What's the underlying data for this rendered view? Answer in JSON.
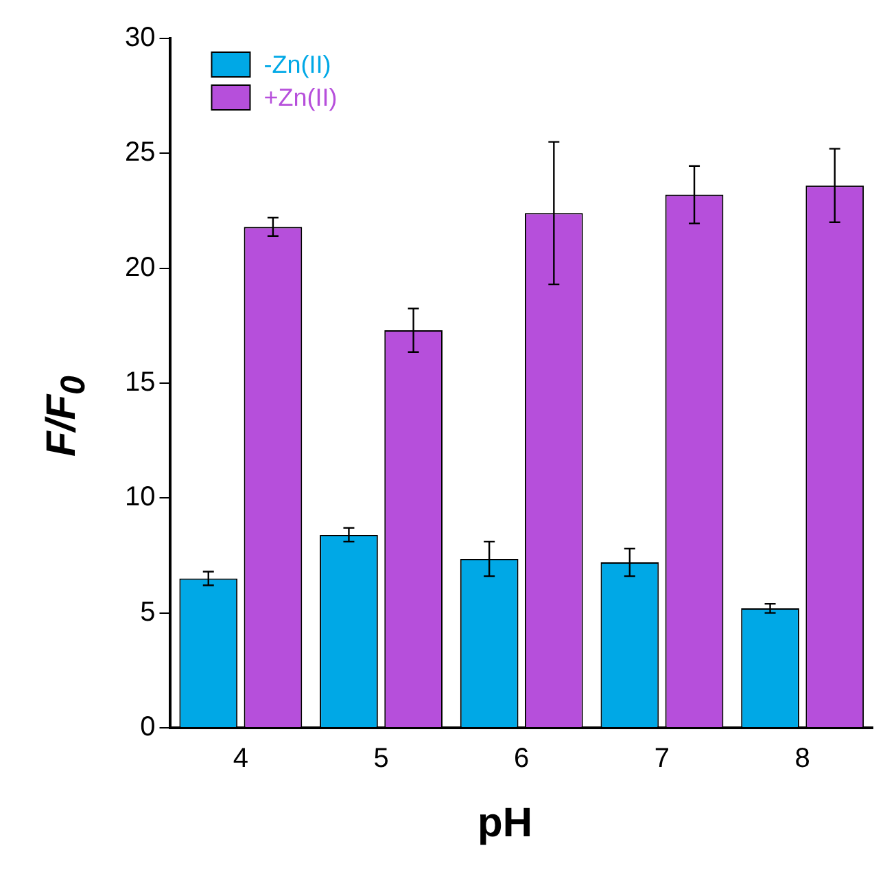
{
  "chart_data": {
    "type": "bar",
    "xlabel": "pH",
    "ylabel": "F/F$_{0}$",
    "categories": [
      "4",
      "5",
      "6",
      "7",
      "8"
    ],
    "series": [
      {
        "name": "-Zn(II)",
        "color": "#00a8e6",
        "values": [
          6.5,
          8.4,
          7.35,
          7.2,
          5.2
        ],
        "errors": [
          0.3,
          0.3,
          0.75,
          0.6,
          0.2
        ]
      },
      {
        "name": "+Zn(II)",
        "color": "#b64fdb",
        "values": [
          21.8,
          17.3,
          22.4,
          23.2,
          23.6
        ],
        "errors": [
          0.4,
          0.95,
          3.1,
          1.25,
          [
            22.0,
            25.2
          ]
        ]
      }
    ],
    "ylim": [
      0,
      30
    ],
    "yticks": [
      0,
      5,
      10,
      15,
      20,
      25,
      30
    ],
    "grid": false,
    "legend": "top left"
  }
}
